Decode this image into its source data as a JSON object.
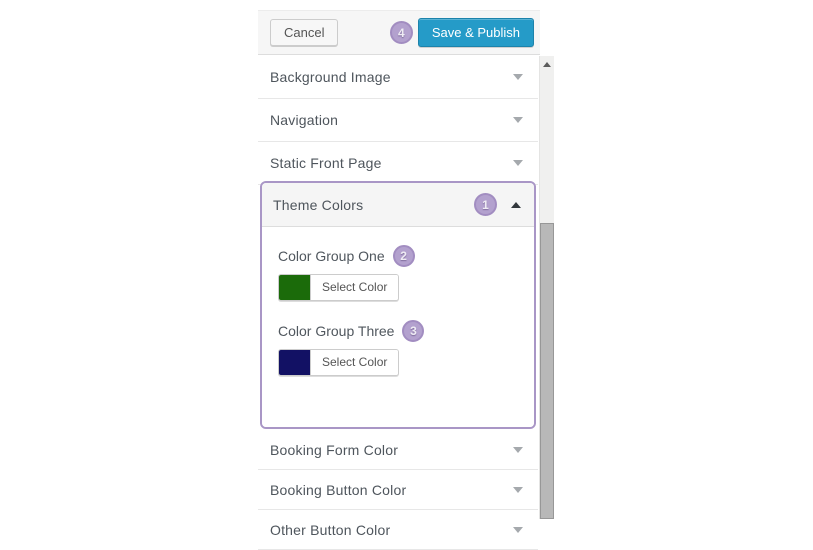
{
  "panel": {
    "header": {
      "cancel_label": "Cancel",
      "save_label": "Save & Publish",
      "annotation_badge": "4"
    },
    "sections_above": [
      {
        "label": "Background Image"
      },
      {
        "label": "Navigation"
      },
      {
        "label": "Static Front Page"
      }
    ],
    "theme_colors": {
      "label": "Theme Colors",
      "annotation_badge": "1",
      "state": "expanded",
      "groups": [
        {
          "label": "Color Group One",
          "annotation_badge": "2",
          "swatch_color": "#1b6b0a",
          "button_label": "Select Color"
        },
        {
          "label": "Color Group Three",
          "annotation_badge": "3",
          "swatch_color": "#121164",
          "button_label": "Select Color"
        }
      ]
    },
    "sections_below": [
      {
        "label": "Booking Form Color"
      },
      {
        "label": "Booking Button Color"
      },
      {
        "label": "Other Button Color"
      }
    ]
  },
  "colors": {
    "save_button": "#259bc8",
    "save_button_border": "#1d83ab",
    "annotation_fill": "#b3a1ce",
    "annotation_border": "#a28dc1",
    "highlight_outline": "#a996c6",
    "swatch_green": "#1b6b0a",
    "swatch_navy": "#121164"
  }
}
